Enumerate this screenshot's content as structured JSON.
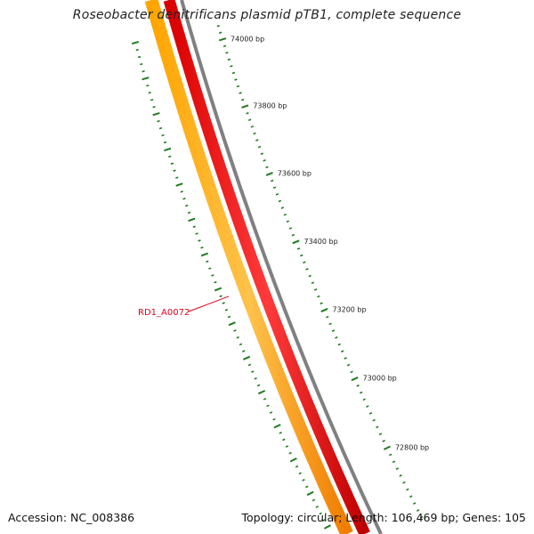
{
  "title": "Roseobacter denitrificans plasmid pTB1, complete sequence",
  "footer": {
    "accession": "Accession: NC_008386",
    "summary": "Topology: circular; Length: 106,469 bp; Genes: 105"
  },
  "colors": {
    "cds_track": "#ff8c00",
    "gene_track": "#ff0000",
    "backbone": "#808080",
    "ticks": "#1f7a1f",
    "gene_label": "#e0001a"
  },
  "scale_ticks": [
    {
      "label": "74000 bp"
    },
    {
      "label": "73800 bp"
    },
    {
      "label": "73600 bp"
    },
    {
      "label": "73400 bp"
    },
    {
      "label": "73200 bp"
    },
    {
      "label": "73000 bp"
    },
    {
      "label": "72800 bp"
    }
  ],
  "gene_label": {
    "text": "RD1_A0072"
  }
}
